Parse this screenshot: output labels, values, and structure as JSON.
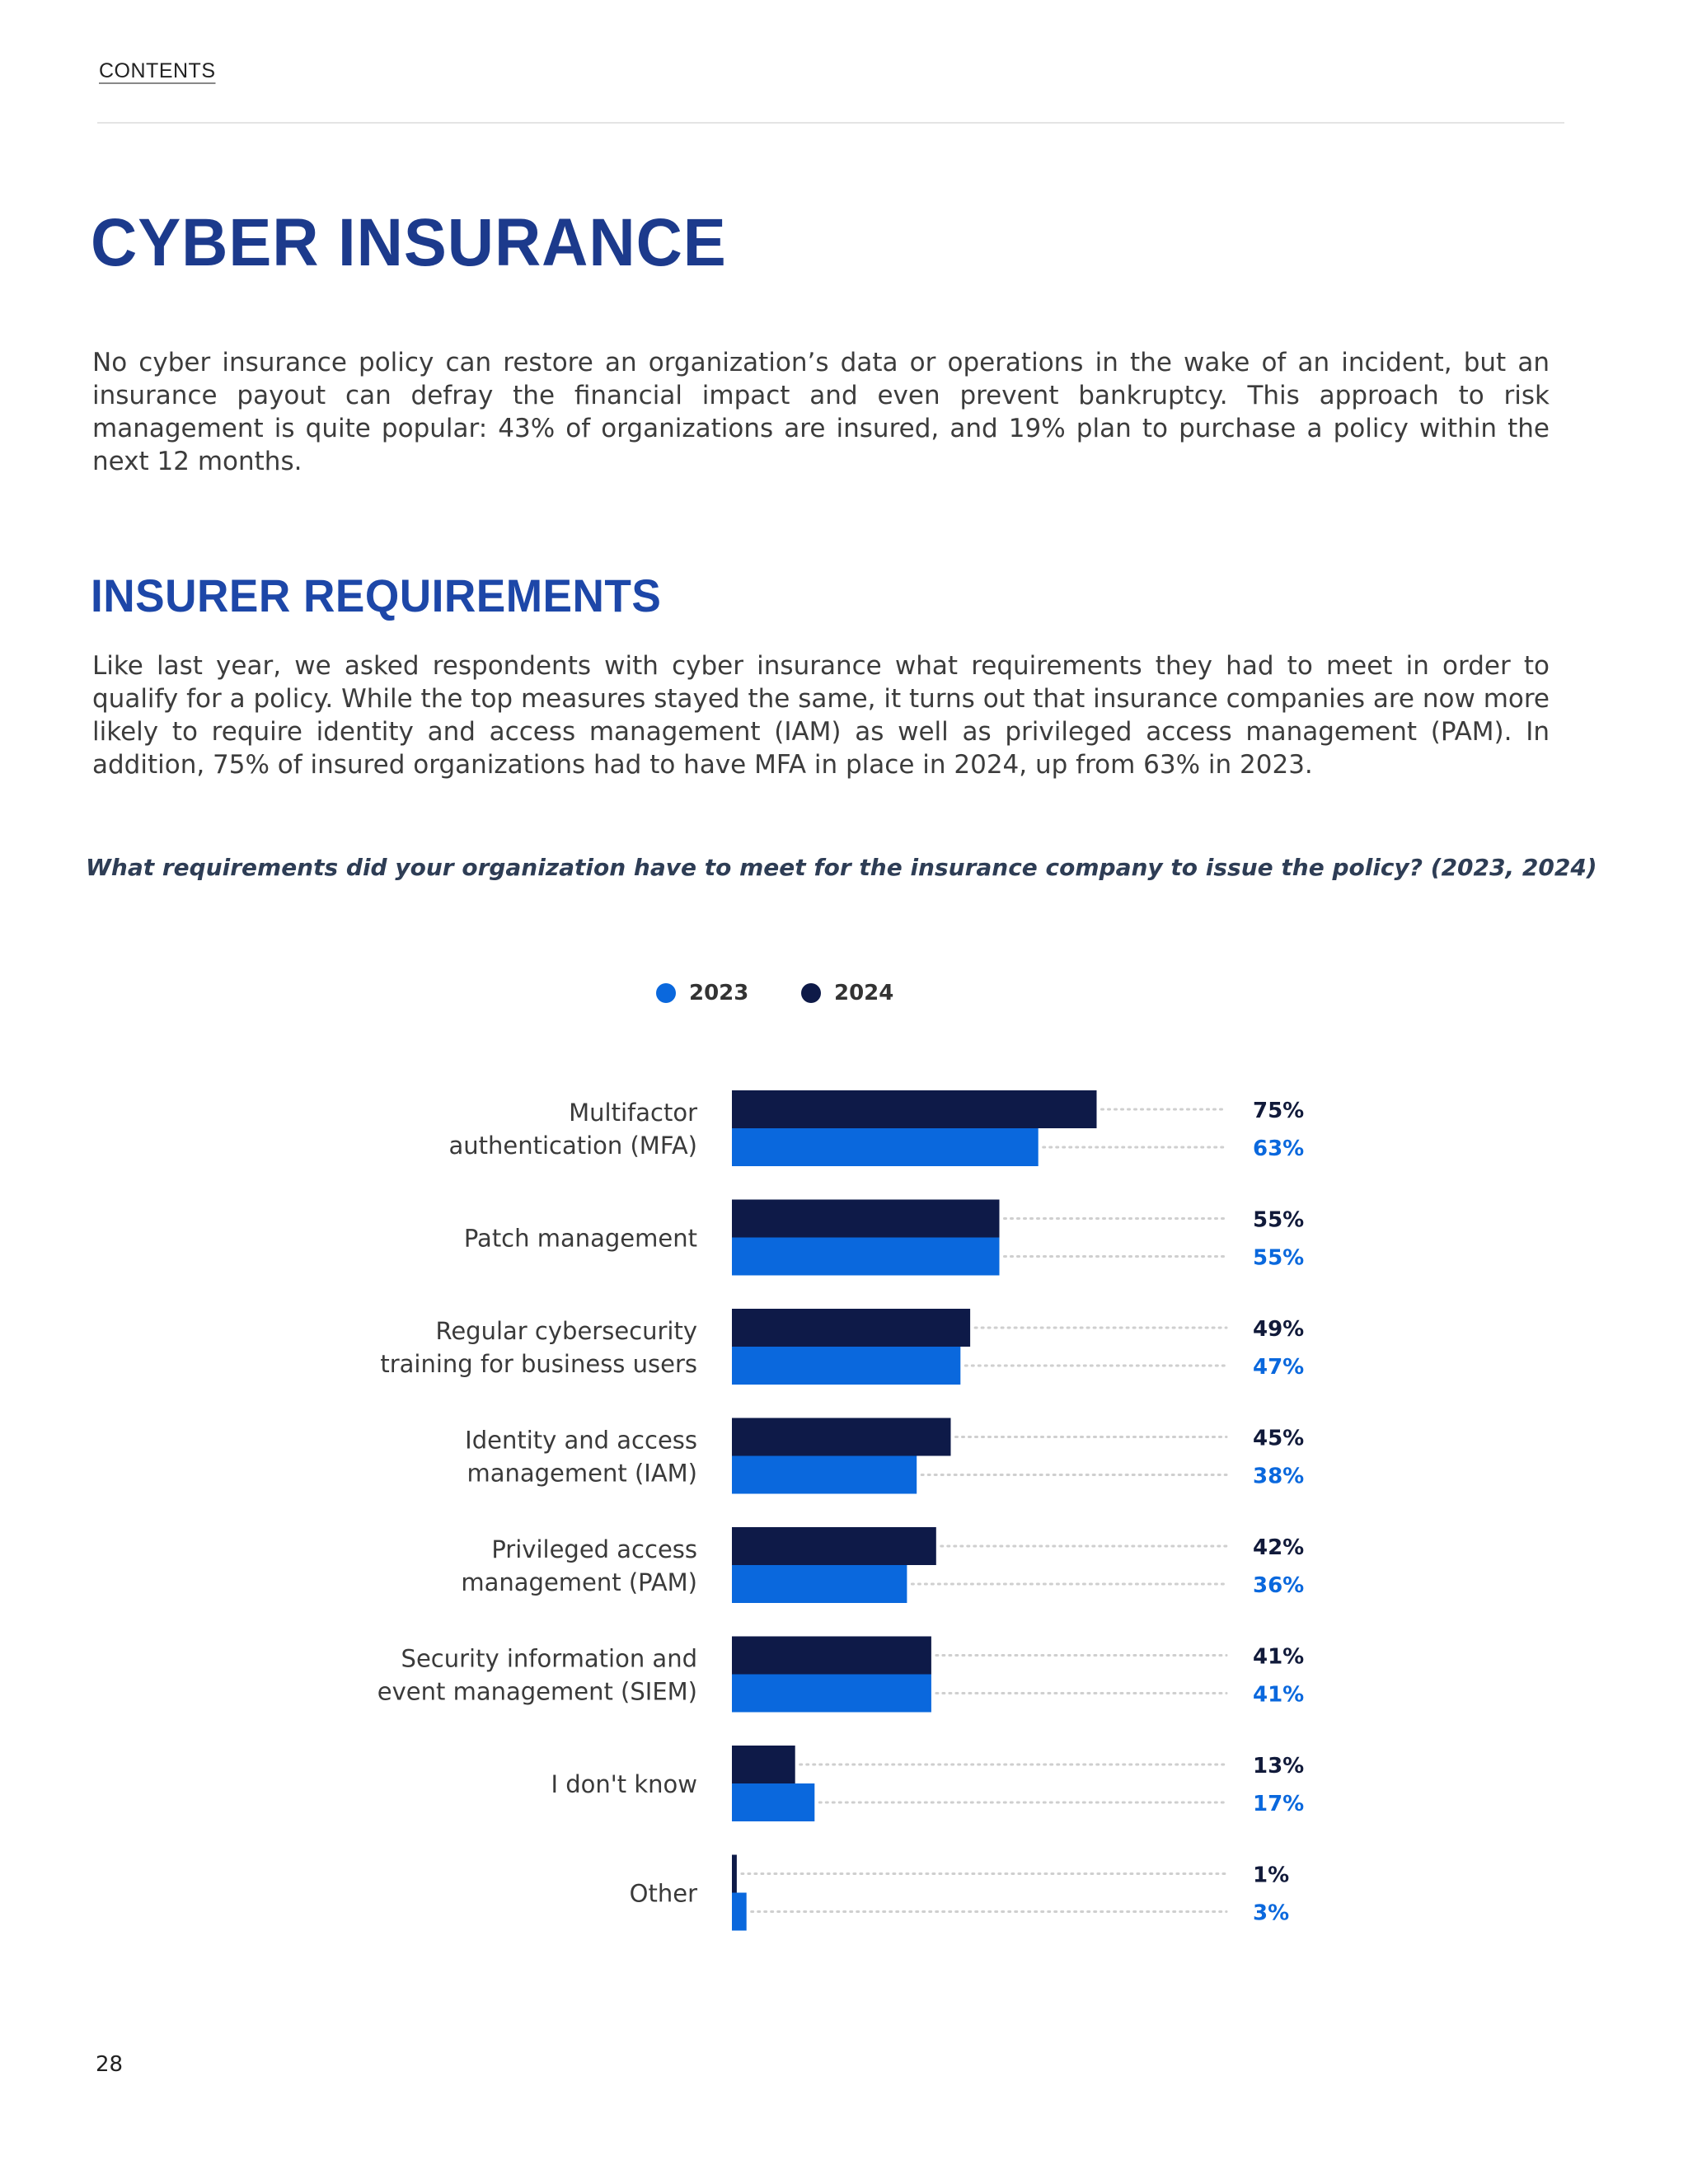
{
  "header": {
    "contents_label": "CONTENTS"
  },
  "section": {
    "title": "CYBER INSURANCE",
    "intro": "No cyber insurance policy can restore an organization’s data or operations in the wake of an incident, but an insurance payout can defray the financial impact and even prevent bankruptcy. This approach to risk management is quite popular: 43% of organizations are insured, and 19% plan to purchase a policy within the next 12 months."
  },
  "subsection": {
    "title": "INSURER REQUIREMENTS",
    "body": "Like last year, we asked respondents with cyber insurance what requirements they had to meet in order to qualify for a policy. While the top measures stayed the same, it turns out that insurance companies are now more likely to require identity and access management (IAM) as well as privileged access management (PAM). In addition, 75% of insured organizations had to have MFA in place in 2024, up from 63% in 2023."
  },
  "colors": {
    "y2023": "#0a68dd",
    "y2024": "#0e1a48",
    "heading_dark": "#1c3a8c",
    "heading_blue": "#1d47a8"
  },
  "chart_data": {
    "type": "bar",
    "orientation": "horizontal",
    "title": "What requirements did your organization have to meet for the insurance company to issue the policy? (2023, 2024)",
    "legend": [
      {
        "name": "2023",
        "color": "#0a68dd"
      },
      {
        "name": "2024",
        "color": "#0e1a48"
      }
    ],
    "categories": [
      [
        "Multifactor",
        "authentication (MFA)"
      ],
      [
        "Patch management"
      ],
      [
        "Regular cybersecurity",
        "training for business users"
      ],
      [
        "Identity and access",
        "management (IAM)"
      ],
      [
        "Privileged access",
        "management (PAM)"
      ],
      [
        "Security information and",
        "event management (SIEM)"
      ],
      [
        "I don't know"
      ],
      [
        "Other"
      ]
    ],
    "series": [
      {
        "name": "2024",
        "color": "#0e1a48",
        "values": [
          75,
          55,
          49,
          45,
          42,
          41,
          13,
          1
        ]
      },
      {
        "name": "2023",
        "color": "#0a68dd",
        "values": [
          63,
          55,
          47,
          38,
          36,
          41,
          17,
          3
        ]
      }
    ],
    "value_suffix": "%",
    "xlim": [
      0,
      100
    ]
  },
  "footer": {
    "page_number": "28"
  }
}
